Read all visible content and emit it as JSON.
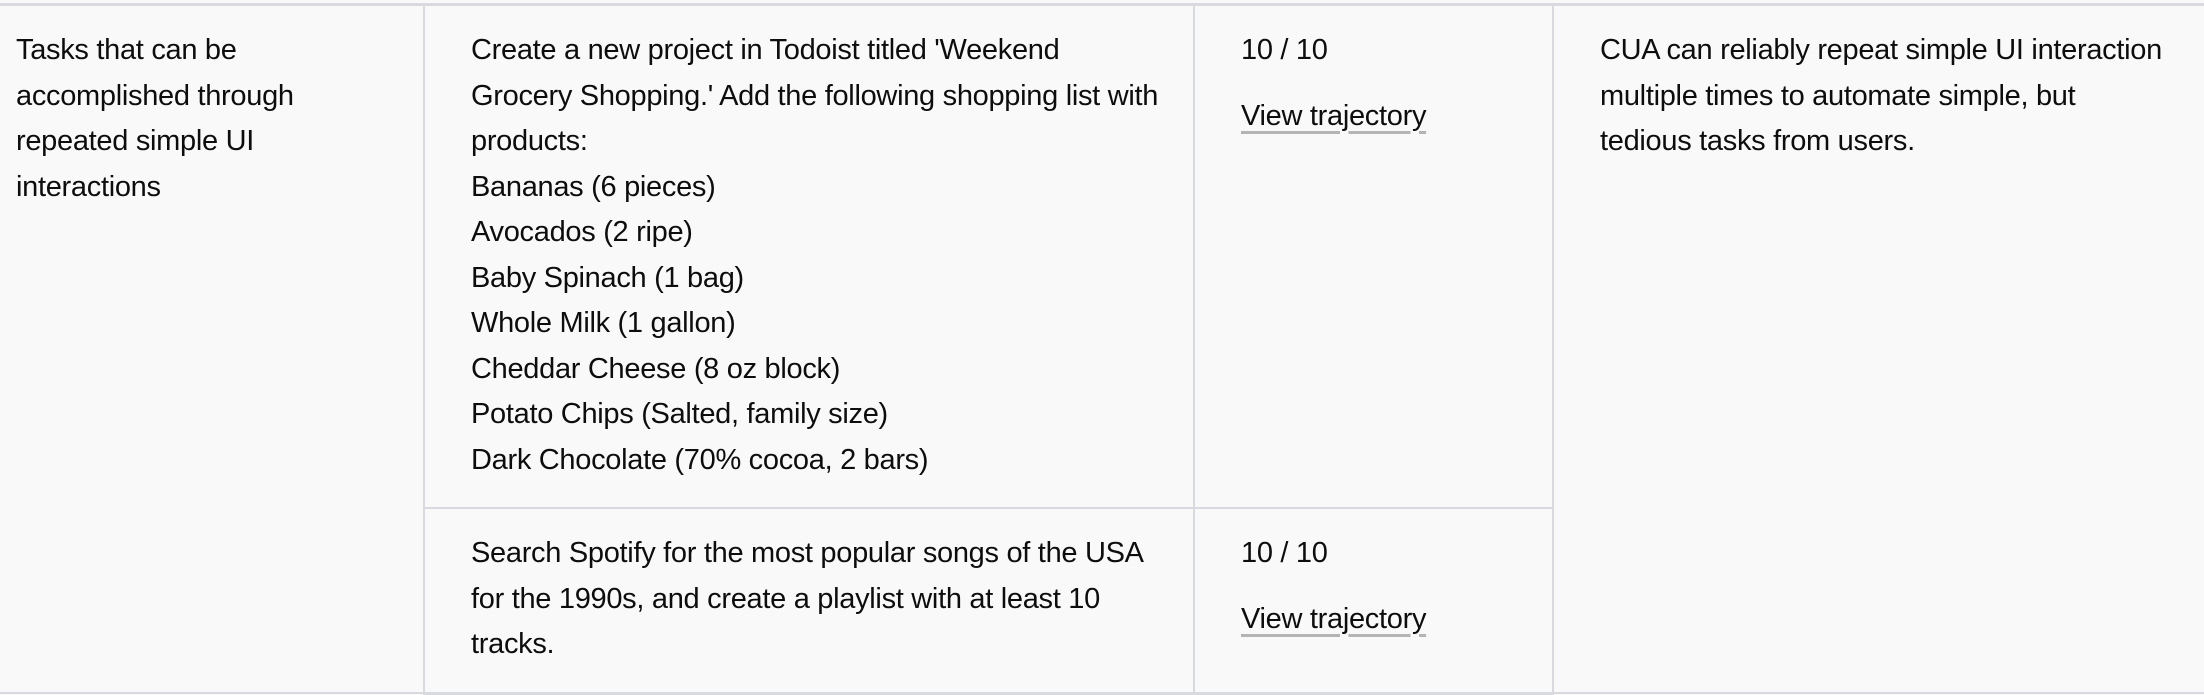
{
  "category": "Tasks that can be accomplished through repeated simple UI interactions",
  "rows": [
    {
      "task_lines": [
        "Create a new project in Todoist titled 'Weekend Grocery Shopping.' Add the following shopping list with products:",
        "Bananas (6 pieces)",
        "Avocados (2 ripe)",
        "Baby Spinach (1 bag)",
        "Whole Milk (1 gallon)",
        "Cheddar Cheese (8 oz block)",
        "Potato Chips (Salted, family size)",
        "Dark Chocolate (70% cocoa, 2 bars)"
      ],
      "score": "10 / 10",
      "link": "View trajectory"
    },
    {
      "task_lines": [
        "Search Spotify for the most popular songs of the USA for the 1990s, and create a playlist with at least 10 tracks."
      ],
      "score": "10 / 10",
      "link": "View trajectory"
    }
  ],
  "note": "CUA can reliably repeat simple UI interaction multiple times to automate simple, but tedious tasks from users."
}
